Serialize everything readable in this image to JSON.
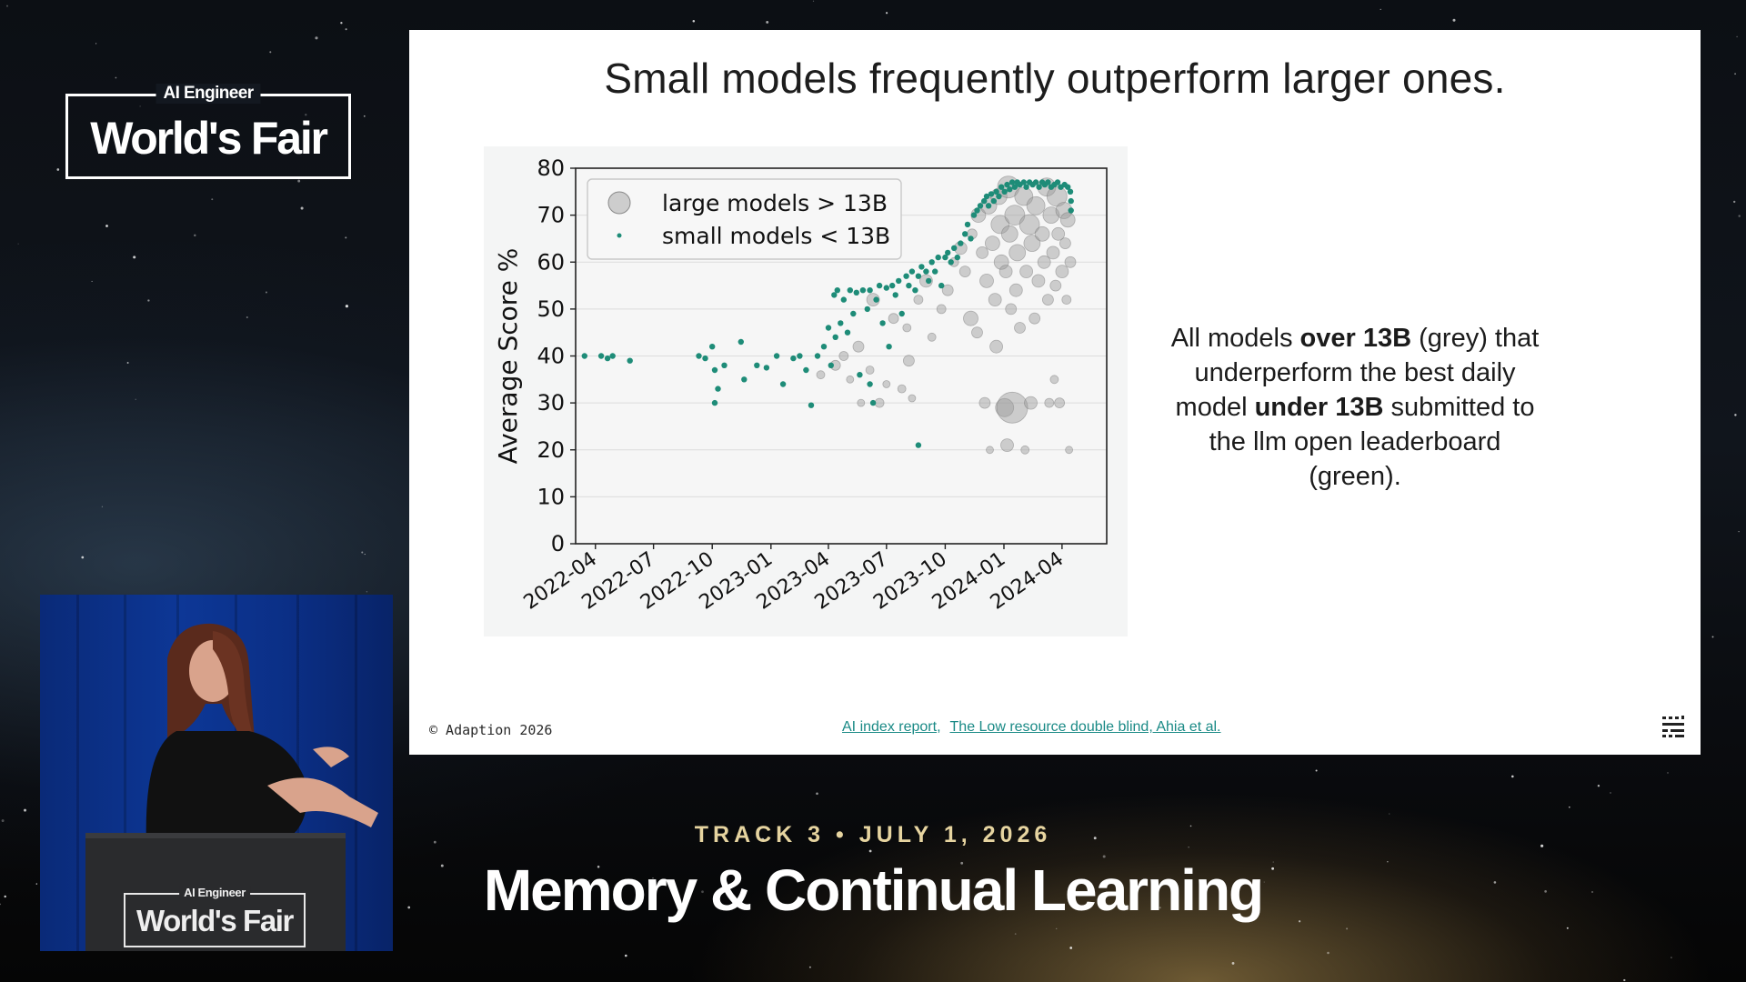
{
  "event": {
    "brand": "AI Engineer",
    "name": "World's Fair"
  },
  "slide": {
    "title": "Small models frequently outperform larger ones.",
    "callout": {
      "t1": "All models ",
      "b1": "over 13B",
      "t2": " (grey) that underperform the best daily model ",
      "b2": "under 13B",
      "t3": " submitted to the llm open leaderboard (green)."
    },
    "copyright": "© Adaption 2026",
    "links": [
      "AI index report",
      "The Low resource double blind, Ahia et al."
    ],
    "link_separator": ","
  },
  "chart_data": {
    "type": "scatter",
    "ylabel": "Average Score %",
    "xlabel": "",
    "ylim": [
      0,
      80
    ],
    "yticks": [
      0,
      10,
      20,
      30,
      40,
      50,
      60,
      70,
      80
    ],
    "xlim": [
      "2022-03-01",
      "2024-06-10"
    ],
    "xticks": [
      "2022-04",
      "2022-07",
      "2022-10",
      "2023-01",
      "2023-04",
      "2023-07",
      "2023-10",
      "2024-01",
      "2024-04"
    ],
    "grid": true,
    "legend_position": "upper-left",
    "colors": {
      "large": "#9a9a9a",
      "small": "#1e8c78"
    },
    "series": [
      {
        "name": "large models > 13B",
        "points": [
          [
            "2023-03-20",
            36,
            9
          ],
          [
            "2023-04-12",
            38,
            11
          ],
          [
            "2023-04-25",
            40,
            10
          ],
          [
            "2023-05-05",
            35,
            8
          ],
          [
            "2023-05-18",
            42,
            12
          ],
          [
            "2023-05-22",
            30,
            8
          ],
          [
            "2023-06-05",
            37,
            9
          ],
          [
            "2023-06-10",
            52,
            14
          ],
          [
            "2023-06-20",
            30,
            10
          ],
          [
            "2023-07-01",
            34,
            8
          ],
          [
            "2023-07-12",
            48,
            11
          ],
          [
            "2023-07-25",
            33,
            9
          ],
          [
            "2023-08-02",
            46,
            9
          ],
          [
            "2023-08-05",
            39,
            12
          ],
          [
            "2023-08-10",
            31,
            8
          ],
          [
            "2023-08-20",
            52,
            10
          ],
          [
            "2023-09-01",
            56,
            14
          ],
          [
            "2023-09-10",
            44,
            9
          ],
          [
            "2023-09-25",
            50,
            10
          ],
          [
            "2023-10-05",
            54,
            12
          ],
          [
            "2023-10-15",
            60,
            10
          ],
          [
            "2023-10-25",
            63,
            14
          ],
          [
            "2023-11-01",
            58,
            12
          ],
          [
            "2023-11-10",
            48,
            16
          ],
          [
            "2023-11-12",
            66,
            11
          ],
          [
            "2023-11-20",
            45,
            12
          ],
          [
            "2023-11-22",
            70,
            16
          ],
          [
            "2023-11-28",
            62,
            13
          ],
          [
            "2023-12-02",
            30,
            12
          ],
          [
            "2023-12-05",
            56,
            15
          ],
          [
            "2023-12-08",
            72,
            18
          ],
          [
            "2023-12-10",
            20,
            8
          ],
          [
            "2023-12-14",
            64,
            16
          ],
          [
            "2023-12-18",
            52,
            14
          ],
          [
            "2023-12-20",
            42,
            14
          ],
          [
            "2023-12-24",
            74,
            18
          ],
          [
            "2023-12-26",
            68,
            20
          ],
          [
            "2023-12-28",
            60,
            16
          ],
          [
            "2024-01-02",
            29,
            20
          ],
          [
            "2024-01-04",
            58,
            14
          ],
          [
            "2024-01-06",
            21,
            14
          ],
          [
            "2024-01-08",
            76,
            24
          ],
          [
            "2024-01-10",
            66,
            18
          ],
          [
            "2024-01-12",
            50,
            12
          ],
          [
            "2024-01-14",
            29,
            34
          ],
          [
            "2024-01-18",
            70,
            22
          ],
          [
            "2024-01-20",
            54,
            14
          ],
          [
            "2024-01-22",
            62,
            18
          ],
          [
            "2024-01-26",
            46,
            12
          ],
          [
            "2024-02-01",
            74,
            20
          ],
          [
            "2024-02-03",
            20,
            9
          ],
          [
            "2024-02-05",
            58,
            14
          ],
          [
            "2024-02-10",
            68,
            22
          ],
          [
            "2024-02-12",
            30,
            14
          ],
          [
            "2024-02-14",
            64,
            18
          ],
          [
            "2024-02-18",
            48,
            12
          ],
          [
            "2024-02-20",
            72,
            20
          ],
          [
            "2024-02-24",
            56,
            14
          ],
          [
            "2024-03-01",
            66,
            16
          ],
          [
            "2024-03-04",
            60,
            14
          ],
          [
            "2024-03-08",
            76,
            20
          ],
          [
            "2024-03-10",
            52,
            12
          ],
          [
            "2024-03-12",
            30,
            10
          ],
          [
            "2024-03-15",
            70,
            18
          ],
          [
            "2024-03-18",
            62,
            14
          ],
          [
            "2024-03-20",
            35,
            9
          ],
          [
            "2024-03-22",
            55,
            12
          ],
          [
            "2024-03-24",
            74,
            22
          ],
          [
            "2024-03-26",
            66,
            14
          ],
          [
            "2024-03-28",
            30,
            11
          ],
          [
            "2024-04-01",
            58,
            14
          ],
          [
            "2024-04-04",
            71,
            18
          ],
          [
            "2024-04-06",
            64,
            12
          ],
          [
            "2024-04-08",
            52,
            10
          ],
          [
            "2024-04-10",
            69,
            16
          ],
          [
            "2024-04-12",
            20,
            8
          ],
          [
            "2024-04-14",
            60,
            12
          ]
        ]
      },
      {
        "name": "small models < 13B",
        "points": [
          [
            "2022-03-15",
            40
          ],
          [
            "2022-04-10",
            40
          ],
          [
            "2022-04-20",
            39.5
          ],
          [
            "2022-04-28",
            40
          ],
          [
            "2022-05-25",
            39
          ],
          [
            "2022-09-10",
            40
          ],
          [
            "2022-09-20",
            39.5
          ],
          [
            "2022-10-01",
            42
          ],
          [
            "2022-10-05",
            37
          ],
          [
            "2022-10-10",
            33
          ],
          [
            "2022-10-20",
            38
          ],
          [
            "2022-10-05",
            30
          ],
          [
            "2022-11-15",
            43
          ],
          [
            "2022-11-20",
            35
          ],
          [
            "2022-12-10",
            38
          ],
          [
            "2022-12-25",
            37.5
          ],
          [
            "2023-01-10",
            40
          ],
          [
            "2023-01-20",
            34
          ],
          [
            "2023-02-05",
            39.5
          ],
          [
            "2023-02-15",
            40
          ],
          [
            "2023-02-25",
            37
          ],
          [
            "2023-03-05",
            29.5
          ],
          [
            "2023-03-15",
            40
          ],
          [
            "2023-03-25",
            42
          ],
          [
            "2023-04-01",
            46
          ],
          [
            "2023-04-05",
            38
          ],
          [
            "2023-04-10",
            53
          ],
          [
            "2023-04-12",
            44
          ],
          [
            "2023-04-15",
            54
          ],
          [
            "2023-04-20",
            47
          ],
          [
            "2023-04-25",
            52
          ],
          [
            "2023-05-01",
            45
          ],
          [
            "2023-05-05",
            54
          ],
          [
            "2023-05-10",
            49
          ],
          [
            "2023-05-15",
            53.5
          ],
          [
            "2023-05-20",
            36
          ],
          [
            "2023-05-25",
            54
          ],
          [
            "2023-06-01",
            50
          ],
          [
            "2023-06-05",
            54
          ],
          [
            "2023-06-10",
            30
          ],
          [
            "2023-06-15",
            52
          ],
          [
            "2023-06-20",
            55
          ],
          [
            "2023-06-25",
            47
          ],
          [
            "2023-07-01",
            54.5
          ],
          [
            "2023-07-05",
            42
          ],
          [
            "2023-07-10",
            55
          ],
          [
            "2023-07-15",
            53
          ],
          [
            "2023-07-20",
            56
          ],
          [
            "2023-07-25",
            49
          ],
          [
            "2023-08-01",
            57
          ],
          [
            "2023-08-05",
            55
          ],
          [
            "2023-08-10",
            58
          ],
          [
            "2023-08-15",
            54
          ],
          [
            "2023-08-20",
            57
          ],
          [
            "2023-08-25",
            59
          ],
          [
            "2023-09-01",
            58
          ],
          [
            "2023-09-05",
            56
          ],
          [
            "2023-09-10",
            60
          ],
          [
            "2023-09-15",
            58
          ],
          [
            "2023-09-20",
            61
          ],
          [
            "2023-09-25",
            55
          ],
          [
            "2023-10-01",
            61
          ],
          [
            "2023-10-05",
            62
          ],
          [
            "2023-10-10",
            60
          ],
          [
            "2023-10-15",
            63
          ],
          [
            "2023-10-20",
            61
          ],
          [
            "2023-10-25",
            64
          ],
          [
            "2023-11-01",
            66
          ],
          [
            "2023-11-05",
            68
          ],
          [
            "2023-11-10",
            65
          ],
          [
            "2023-11-15",
            70
          ],
          [
            "2023-11-20",
            71
          ],
          [
            "2023-11-25",
            72
          ],
          [
            "2023-12-01",
            73
          ],
          [
            "2023-12-05",
            74
          ],
          [
            "2023-12-08",
            72
          ],
          [
            "2023-12-12",
            74.5
          ],
          [
            "2023-12-16",
            73
          ],
          [
            "2023-12-20",
            75
          ],
          [
            "2023-12-24",
            74
          ],
          [
            "2023-12-28",
            76
          ],
          [
            "2024-01-02",
            75
          ],
          [
            "2024-01-06",
            76.5
          ],
          [
            "2024-01-10",
            75.5
          ],
          [
            "2024-01-14",
            77
          ],
          [
            "2024-01-18",
            76
          ],
          [
            "2024-01-22",
            77
          ],
          [
            "2024-01-26",
            76.5
          ],
          [
            "2024-02-01",
            77
          ],
          [
            "2024-02-05",
            76
          ],
          [
            "2024-02-10",
            77
          ],
          [
            "2024-02-15",
            76.5
          ],
          [
            "2024-02-20",
            77
          ],
          [
            "2024-02-25",
            76
          ],
          [
            "2024-03-01",
            77
          ],
          [
            "2024-03-05",
            76.5
          ],
          [
            "2024-03-10",
            77
          ],
          [
            "2024-03-15",
            76
          ],
          [
            "2024-03-20",
            76.5
          ],
          [
            "2024-03-25",
            77
          ],
          [
            "2024-03-30",
            76
          ],
          [
            "2024-04-05",
            76.5
          ],
          [
            "2024-04-10",
            76
          ],
          [
            "2024-04-14",
            75
          ],
          [
            "2024-04-15",
            73
          ],
          [
            "2024-04-15",
            71
          ],
          [
            "2023-08-20",
            21
          ],
          [
            "2023-06-05",
            34
          ]
        ]
      }
    ]
  },
  "lower_third": {
    "track": "TRACK 3 • JULY 1, 2026",
    "talk_title": "Memory & Continual Learning"
  },
  "podium": {
    "brand": "AI Engineer",
    "name": "World's Fair"
  }
}
